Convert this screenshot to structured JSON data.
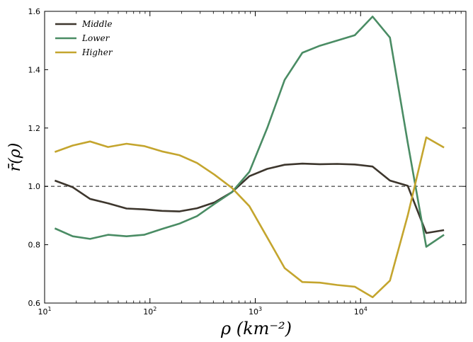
{
  "chart_data": {
    "type": "line",
    "xlabel": "ρ (km⁻²)",
    "ylabel": "r̄(ρ)",
    "xscale": "log",
    "xlim": [
      10,
      100000
    ],
    "ylim": [
      0.6,
      1.6
    ],
    "yticks": [
      0.6,
      0.8,
      1.0,
      1.2,
      1.4,
      1.6
    ],
    "ytick_labels": [
      "0.6",
      "0.8",
      "1.0",
      "1.2",
      "1.4",
      "1.6"
    ],
    "xticks": [
      10,
      100,
      1000,
      10000
    ],
    "xtick_labels": [
      {
        "base": "10",
        "exp": "1"
      },
      {
        "base": "10",
        "exp": "2"
      },
      {
        "base": "10",
        "exp": "3"
      },
      {
        "base": "10",
        "exp": "4"
      }
    ],
    "reference_line": {
      "y": 1.0,
      "style": "dashed",
      "color": "#555555"
    },
    "grid": false,
    "legend_position": "top-left",
    "x": [
      12.5,
      18.5,
      27,
      40,
      60,
      88,
      130,
      190,
      280,
      410,
      600,
      880,
      1300,
      1900,
      2800,
      4100,
      6000,
      8800,
      13000,
      19000,
      28000,
      42000,
      62000
    ],
    "series": [
      {
        "name": "Middle",
        "color": "#3d362d",
        "values": [
          1.02,
          0.997,
          0.957,
          0.942,
          0.924,
          0.921,
          0.916,
          0.914,
          0.925,
          0.945,
          0.98,
          1.035,
          1.06,
          1.074,
          1.078,
          1.076,
          1.077,
          1.075,
          1.068,
          1.02,
          1.002,
          0.84,
          0.85
        ]
      },
      {
        "name": "Lower",
        "color": "#4a8c64",
        "values": [
          0.856,
          0.829,
          0.82,
          0.834,
          0.829,
          0.834,
          0.854,
          0.872,
          0.898,
          0.94,
          0.98,
          1.05,
          1.2,
          1.365,
          1.458,
          1.482,
          1.5,
          1.518,
          1.582,
          1.51,
          1.15,
          0.793,
          0.834
        ]
      },
      {
        "name": "Higher",
        "color": "#c4a52e",
        "values": [
          1.118,
          1.14,
          1.154,
          1.135,
          1.146,
          1.138,
          1.12,
          1.107,
          1.08,
          1.04,
          0.995,
          0.932,
          0.825,
          0.72,
          0.672,
          0.67,
          0.662,
          0.656,
          0.62,
          0.677,
          0.9,
          1.168,
          1.133
        ]
      }
    ]
  }
}
